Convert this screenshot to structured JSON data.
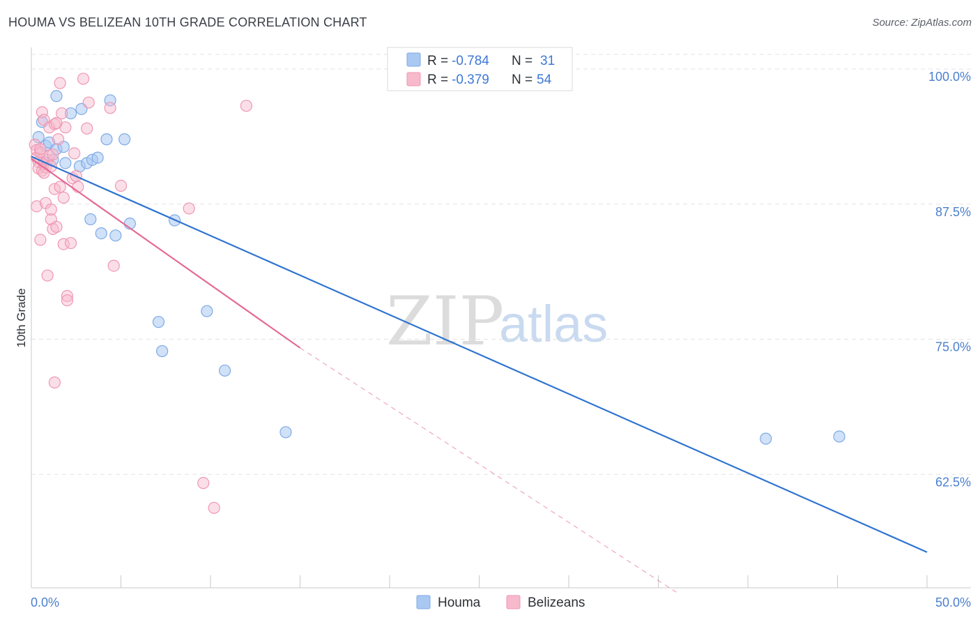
{
  "title": "HOUMA VS BELIZEAN 10TH GRADE CORRELATION CHART",
  "source": "Source: ZipAtlas.com",
  "watermark": {
    "part1": "ZIP",
    "part2": "atlas"
  },
  "colors": {
    "houma_fill": "#a9c8f2",
    "houma_stroke": "#7eaae6",
    "houma_line": "#2f74d0",
    "belize_fill": "#f7b9cc",
    "belize_stroke": "#ef97b3",
    "belize_line": "#e46a93",
    "grid": "#e3e3e3",
    "axis_text": "#4a7fcf"
  },
  "legend_top": {
    "rows": [
      {
        "r_label": "R =",
        "r_value": "-0.784",
        "n_label": "N =",
        "n_value": "31"
      },
      {
        "r_label": "R =",
        "r_value": "-0.379",
        "n_label": "N =",
        "n_value": "54"
      }
    ]
  },
  "legend_bottom": {
    "series1": "Houma",
    "series2": "Belizeans"
  },
  "chart_data": {
    "type": "scatter",
    "title": "HOUMA VS BELIZEAN 10TH GRADE CORRELATION CHART",
    "xlabel": "",
    "ylabel": "10th Grade",
    "xlim": [
      0,
      50
    ],
    "ylim": [
      52,
      102
    ],
    "x_tick_labels": [
      "0.0%",
      "50.0%"
    ],
    "y_ticks": [
      100,
      87.5,
      75,
      62.5
    ],
    "y_tick_labels": [
      "100.0%",
      "87.5%",
      "75.0%",
      "62.5%"
    ],
    "series": [
      {
        "name": "Houma",
        "points": [
          [
            0.4,
            93.7
          ],
          [
            0.6,
            95.1
          ],
          [
            0.8,
            92.9
          ],
          [
            1.0,
            93.2
          ],
          [
            1.2,
            91.6
          ],
          [
            1.4,
            92.6
          ],
          [
            1.4,
            97.5
          ],
          [
            1.8,
            92.8
          ],
          [
            1.9,
            91.3
          ],
          [
            2.2,
            95.9
          ],
          [
            2.7,
            91.0
          ],
          [
            2.8,
            96.3
          ],
          [
            3.1,
            91.3
          ],
          [
            3.4,
            91.6
          ],
          [
            3.7,
            91.8
          ],
          [
            4.2,
            93.5
          ],
          [
            4.4,
            97.1
          ],
          [
            5.2,
            93.5
          ],
          [
            3.3,
            86.1
          ],
          [
            3.9,
            84.8
          ],
          [
            4.7,
            84.6
          ],
          [
            5.5,
            85.7
          ],
          [
            8.0,
            86.0
          ],
          [
            7.1,
            76.6
          ],
          [
            7.3,
            73.9
          ],
          [
            9.8,
            77.6
          ],
          [
            10.8,
            72.1
          ],
          [
            14.2,
            66.4
          ],
          [
            41.0,
            65.8
          ],
          [
            45.1,
            66.0
          ],
          [
            0.7,
            91.4
          ]
        ],
        "trend": {
          "x": [
            0,
            50
          ],
          "y": [
            91.9,
            55.3
          ],
          "r": -0.784,
          "n": 31
        }
      },
      {
        "name": "Belizeans",
        "points": [
          [
            0.2,
            93.0
          ],
          [
            0.3,
            92.5
          ],
          [
            0.3,
            91.8
          ],
          [
            0.4,
            91.4
          ],
          [
            0.4,
            90.8
          ],
          [
            0.5,
            92.3
          ],
          [
            0.5,
            92.6
          ],
          [
            0.6,
            90.6
          ],
          [
            0.7,
            91.2
          ],
          [
            0.8,
            90.9
          ],
          [
            0.9,
            91.6
          ],
          [
            1.0,
            92.0
          ],
          [
            1.1,
            91.0
          ],
          [
            1.2,
            92.1
          ],
          [
            0.3,
            87.3
          ],
          [
            0.5,
            84.2
          ],
          [
            0.6,
            96.0
          ],
          [
            0.7,
            95.3
          ],
          [
            0.8,
            87.6
          ],
          [
            1.0,
            94.6
          ],
          [
            1.1,
            86.1
          ],
          [
            1.1,
            87.0
          ],
          [
            1.2,
            85.2
          ],
          [
            1.3,
            88.9
          ],
          [
            1.3,
            94.9
          ],
          [
            1.4,
            85.4
          ],
          [
            1.5,
            93.5
          ],
          [
            1.6,
            98.7
          ],
          [
            1.6,
            89.1
          ],
          [
            1.7,
            95.9
          ],
          [
            1.8,
            88.1
          ],
          [
            1.8,
            83.8
          ],
          [
            1.9,
            94.6
          ],
          [
            2.0,
            79.0
          ],
          [
            2.0,
            78.6
          ],
          [
            2.2,
            83.9
          ],
          [
            2.3,
            89.9
          ],
          [
            2.4,
            92.2
          ],
          [
            2.5,
            90.1
          ],
          [
            2.6,
            89.1
          ],
          [
            2.9,
            99.1
          ],
          [
            3.1,
            94.5
          ],
          [
            3.2,
            96.9
          ],
          [
            4.4,
            96.4
          ],
          [
            4.6,
            81.8
          ],
          [
            5.0,
            89.2
          ],
          [
            8.8,
            87.1
          ],
          [
            12.0,
            96.6
          ],
          [
            1.3,
            71.0
          ],
          [
            0.9,
            80.9
          ],
          [
            9.6,
            61.7
          ],
          [
            10.2,
            59.4
          ],
          [
            0.7,
            90.4
          ],
          [
            1.4,
            95.0
          ]
        ],
        "trend": {
          "x": [
            0,
            15
          ],
          "y": [
            91.7,
            74.2
          ],
          "x_dashed_to": 36.0,
          "y_dashed_to": 51.6,
          "r": -0.379,
          "n": 54
        }
      }
    ]
  }
}
